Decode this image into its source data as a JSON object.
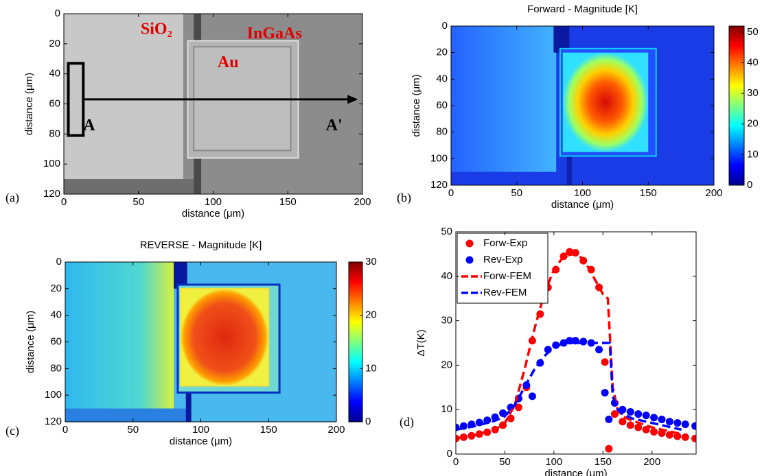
{
  "chart_data": [
    {
      "type": "image",
      "label": "(a)",
      "xlabel": "distance (μm)",
      "ylabel": "distance (μm)",
      "xlim": [
        0,
        200
      ],
      "ylim": [
        0,
        120
      ],
      "y_inverted": true,
      "xticks": [
        0,
        50,
        100,
        150,
        200
      ],
      "yticks": [
        0,
        20,
        40,
        60,
        80,
        100,
        120
      ],
      "annotations": [
        "SiO₂",
        "InGaAs",
        "Au",
        "A",
        "A'"
      ]
    },
    {
      "type": "heatmap",
      "label": "(b)",
      "title": "Forward - Magnitude [K]",
      "xlabel": "distance (μm)",
      "ylabel": "distance (μm)",
      "xlim": [
        0,
        200
      ],
      "ylim": [
        0,
        120
      ],
      "y_inverted": true,
      "xticks": [
        0,
        50,
        100,
        150,
        200
      ],
      "yticks": [
        0,
        20,
        40,
        60,
        80,
        100,
        120
      ],
      "colormap": "jet",
      "clim": [
        0,
        52
      ],
      "cticks": [
        0,
        10,
        20,
        30,
        40,
        50
      ]
    },
    {
      "type": "heatmap",
      "label": "(c)",
      "title": "REVERSE - Magnitude [K]",
      "xlabel": "distance (μm)",
      "ylabel": "distance (μm)",
      "xlim": [
        0,
        200
      ],
      "ylim": [
        0,
        120
      ],
      "y_inverted": true,
      "xticks": [
        0,
        50,
        100,
        150,
        200
      ],
      "yticks": [
        0,
        20,
        40,
        60,
        80,
        100,
        120
      ],
      "colormap": "jet",
      "clim": [
        0,
        30
      ],
      "cticks": [
        0,
        10,
        20,
        30
      ]
    },
    {
      "type": "scatter",
      "label": "(d)",
      "xlabel": "distance (μm)",
      "ylabel": "ΔT(K)",
      "xlim": [
        0,
        245
      ],
      "ylim": [
        0,
        50
      ],
      "xticks": [
        0,
        50,
        100,
        150,
        200
      ],
      "yticks": [
        0,
        10,
        20,
        30,
        40,
        50
      ],
      "legend": "upper left",
      "series": [
        {
          "name": "Forw-Exp",
          "kind": "markers",
          "color": "#ff0000",
          "x": [
            0,
            8,
            16,
            24,
            32,
            40,
            48,
            56,
            64,
            72,
            78,
            86,
            94,
            102,
            110,
            116,
            122,
            130,
            138,
            146,
            152,
            156,
            162,
            170,
            178,
            186,
            194,
            202,
            210,
            218,
            226,
            234,
            244
          ],
          "values": [
            3.5,
            3.8,
            4.1,
            4.5,
            4.9,
            5.5,
            6.5,
            8,
            10.5,
            15,
            25.5,
            31.5,
            37.5,
            41.5,
            44.5,
            45.5,
            45.3,
            43.5,
            41.5,
            37.5,
            20.7,
            1.2,
            9,
            7.3,
            6.5,
            6,
            5.5,
            5,
            4.7,
            4.3,
            4,
            3.8,
            3.5
          ]
        },
        {
          "name": "Rev-Exp",
          "kind": "markers",
          "color": "#0000ff",
          "x": [
            0,
            8,
            16,
            24,
            32,
            40,
            48,
            56,
            64,
            72,
            78,
            86,
            94,
            102,
            110,
            116,
            122,
            130,
            138,
            146,
            152,
            156,
            162,
            170,
            178,
            186,
            194,
            202,
            210,
            218,
            226,
            234,
            244
          ],
          "values": [
            6,
            6.3,
            6.7,
            7.1,
            7.6,
            8.3,
            9.2,
            10.5,
            12.5,
            15.5,
            13,
            20.5,
            23.5,
            24.5,
            25,
            25.5,
            25.5,
            25.3,
            25,
            23.5,
            13.8,
            7.8,
            11.5,
            10,
            9.5,
            9,
            8.7,
            8.2,
            7.8,
            7.3,
            7,
            6.7,
            6.3
          ]
        },
        {
          "name": "Forw-FEM",
          "kind": "dashed",
          "color": "#ff0000",
          "x": [
            0,
            20,
            40,
            50,
            60,
            70,
            80,
            90,
            100,
            110,
            120,
            130,
            140,
            150,
            155,
            160,
            165,
            170,
            180,
            200,
            230
          ],
          "values": [
            3.5,
            4.3,
            5.5,
            7,
            11,
            19,
            28,
            36,
            41.5,
            44.5,
            45,
            44,
            40,
            36,
            35,
            15,
            10,
            8.5,
            7.5,
            6,
            4.5
          ]
        },
        {
          "name": "Rev-FEM",
          "kind": "dashed",
          "color": "#0000ff",
          "x": [
            0,
            20,
            40,
            50,
            60,
            70,
            80,
            90,
            100,
            110,
            120,
            130,
            140,
            150,
            157,
            160,
            165,
            170,
            180,
            200,
            230
          ],
          "values": [
            5.5,
            6.3,
            7.5,
            8.5,
            11,
            15,
            19,
            22,
            24,
            25,
            25,
            25,
            25,
            25,
            25,
            13,
            10,
            9,
            8,
            7,
            5.5
          ]
        }
      ]
    }
  ]
}
